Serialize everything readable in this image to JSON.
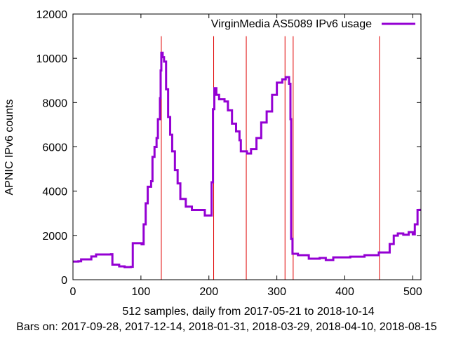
{
  "chart_data": {
    "type": "line",
    "title": "",
    "xlabel": "512 samples, daily from 2017-05-21 to 2018-10-14",
    "xlabel2": "Bars on:  2017-09-28, 2017-12-14, 2018-01-31, 2018-03-29, 2018-04-10, 2018-08-15",
    "ylabel": "APNIC IPv6 counts",
    "xlim": [
      0,
      512
    ],
    "ylim": [
      0,
      12000
    ],
    "xticks": [
      0,
      100,
      200,
      300,
      400,
      500
    ],
    "yticks": [
      0,
      2000,
      4000,
      6000,
      8000,
      10000,
      12000
    ],
    "grid": false,
    "legend_position": "top-right",
    "colors": {
      "series": "#9400d3",
      "bars": "#e00000"
    },
    "bars": {
      "x": [
        130,
        207,
        255,
        312,
        324,
        451
      ],
      "top": 11000
    },
    "series": [
      {
        "name": "VirginMedia AS5089 IPv6 usage",
        "x": [
          0,
          8,
          12,
          25,
          27,
          34,
          56,
          58,
          68,
          76,
          85,
          88,
          101,
          104,
          107,
          110,
          115,
          117,
          120,
          123,
          125,
          128,
          129,
          130,
          132,
          134,
          137,
          140,
          143,
          146,
          150,
          154,
          158,
          166,
          175,
          192,
          194,
          202,
          204,
          206,
          208,
          211,
          215,
          223,
          228,
          234,
          240,
          245,
          247,
          250,
          256,
          262,
          270,
          277,
          285,
          293,
          300,
          308,
          313,
          318,
          320,
          321,
          323,
          331,
          347,
          363,
          372,
          383,
          408,
          429,
          450,
          458,
          466,
          472,
          478,
          486,
          494,
          500,
          503,
          507,
          510
        ],
        "y": [
          820,
          830,
          920,
          920,
          1050,
          1140,
          1150,
          680,
          600,
          570,
          580,
          1650,
          1600,
          2500,
          3450,
          4200,
          4450,
          5550,
          6000,
          6400,
          7250,
          8200,
          9450,
          10250,
          10050,
          9850,
          8600,
          7350,
          6550,
          5800,
          4950,
          4350,
          3650,
          3300,
          3150,
          3150,
          2900,
          2900,
          4400,
          7700,
          8650,
          8350,
          8150,
          8050,
          7650,
          7050,
          6700,
          6300,
          5800,
          5800,
          5700,
          5900,
          6400,
          7100,
          7600,
          8350,
          8900,
          9050,
          9150,
          8850,
          7250,
          1850,
          1170,
          1110,
          950,
          980,
          890,
          1010,
          1040,
          1110,
          1230,
          1230,
          1610,
          1990,
          2090,
          2030,
          2150,
          2050,
          2500,
          3150,
          3200
        ]
      }
    ]
  }
}
